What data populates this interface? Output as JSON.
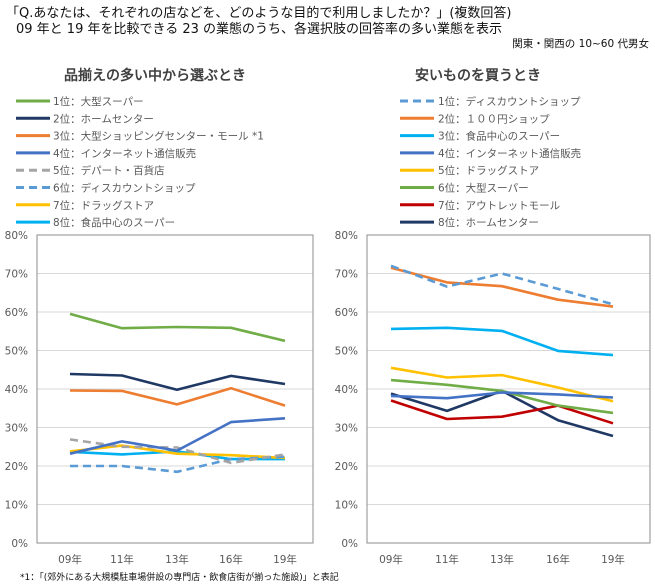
{
  "header": {
    "question": "「Q.あなたは、それぞれの店などを、どのような目的で利用しましたか？」(複数回答)",
    "subtitle": "09 年と 19 年を比較できる 23 の業態のうち、各選択肢の回答率の多い業態を表示",
    "sample": "関東・関西の 10~60 代男女"
  },
  "footnote": "*1：「(郊外にある大規模駐車場併設の専門店・飲食店街が揃った施設)」と表記",
  "chart_data": [
    {
      "type": "line",
      "title": "品揃えの多い中から選ぶとき",
      "categories": [
        "09年",
        "11年",
        "13年",
        "16年",
        "19年"
      ],
      "ylim": [
        0,
        80
      ],
      "yticks": [
        "0%",
        "10%",
        "20%",
        "30%",
        "40%",
        "50%",
        "60%",
        "70%",
        "80%"
      ],
      "grid": true,
      "legend": "top",
      "series": [
        {
          "name": "1位：大型スーパー",
          "color": "#70AD47",
          "dashed": false,
          "values": [
            59.5,
            55.8,
            56.1,
            55.9,
            52.5
          ]
        },
        {
          "name": "2位：ホームセンター",
          "color": "#1F3864",
          "dashed": false,
          "values": [
            43.9,
            43.5,
            39.8,
            43.4,
            41.3
          ]
        },
        {
          "name": "3位：大型ショッピングセンター・モール  *1",
          "color": "#ED7D31",
          "dashed": false,
          "values": [
            39.6,
            39.5,
            36.0,
            40.2,
            35.7
          ]
        },
        {
          "name": "4位：インターネット通信販売",
          "color": "#4472C4",
          "dashed": false,
          "values": [
            23.2,
            26.4,
            24.0,
            31.4,
            32.4
          ]
        },
        {
          "name": "5位：デパート・百貨店",
          "color": "#A5A5A5",
          "dashed": true,
          "values": [
            26.9,
            25.0,
            24.8,
            20.8,
            23.0
          ]
        },
        {
          "name": "6位：ディスカウントショップ",
          "color": "#5B9BD5",
          "dashed": true,
          "values": [
            20.0,
            20.0,
            18.5,
            21.8,
            22.4
          ]
        },
        {
          "name": "7位：ドラッグストア",
          "color": "#FFC000",
          "dashed": false,
          "values": [
            23.8,
            25.3,
            23.2,
            22.8,
            22.1
          ]
        },
        {
          "name": "8位：食品中心のスーパー",
          "color": "#00B0F0",
          "dashed": false,
          "values": [
            23.7,
            23.0,
            23.8,
            21.8,
            21.8
          ]
        }
      ]
    },
    {
      "type": "line",
      "title": "安いものを買うとき",
      "categories": [
        "09年",
        "11年",
        "13年",
        "16年",
        "19年"
      ],
      "ylim": [
        0,
        80
      ],
      "yticks": [
        "0%",
        "10%",
        "20%",
        "30%",
        "40%",
        "50%",
        "60%",
        "70%",
        "80%"
      ],
      "grid": true,
      "legend": "top",
      "series": [
        {
          "name": "1位：ディスカウントショップ",
          "color": "#5B9BD5",
          "dashed": true,
          "values": [
            72.0,
            66.6,
            70.0,
            66.0,
            62.0
          ]
        },
        {
          "name": "2位：１００円ショップ",
          "color": "#ED7D31",
          "dashed": false,
          "values": [
            71.5,
            67.7,
            66.7,
            63.2,
            61.4
          ]
        },
        {
          "name": "3位：食品中心のスーパー",
          "color": "#00B0F0",
          "dashed": false,
          "values": [
            55.6,
            55.9,
            55.1,
            49.9,
            48.8
          ]
        },
        {
          "name": "4位：インターネット通信販売",
          "color": "#4472C4",
          "dashed": false,
          "values": [
            38.2,
            37.6,
            39.1,
            38.6,
            37.8
          ]
        },
        {
          "name": "5位：ドラッグストア",
          "color": "#FFC000",
          "dashed": false,
          "values": [
            45.5,
            43.0,
            43.6,
            40.4,
            36.8
          ]
        },
        {
          "name": "6位：大型スーパー",
          "color": "#70AD47",
          "dashed": false,
          "values": [
            42.3,
            41.1,
            39.5,
            35.7,
            33.8
          ]
        },
        {
          "name": "7位：アウトレットモール",
          "color": "#C00000",
          "dashed": false,
          "values": [
            37.0,
            32.2,
            32.8,
            35.7,
            31.1
          ]
        },
        {
          "name": "8位：ホームセンター",
          "color": "#203864",
          "dashed": false,
          "values": [
            38.8,
            34.3,
            39.5,
            31.9,
            27.8
          ]
        }
      ]
    }
  ]
}
